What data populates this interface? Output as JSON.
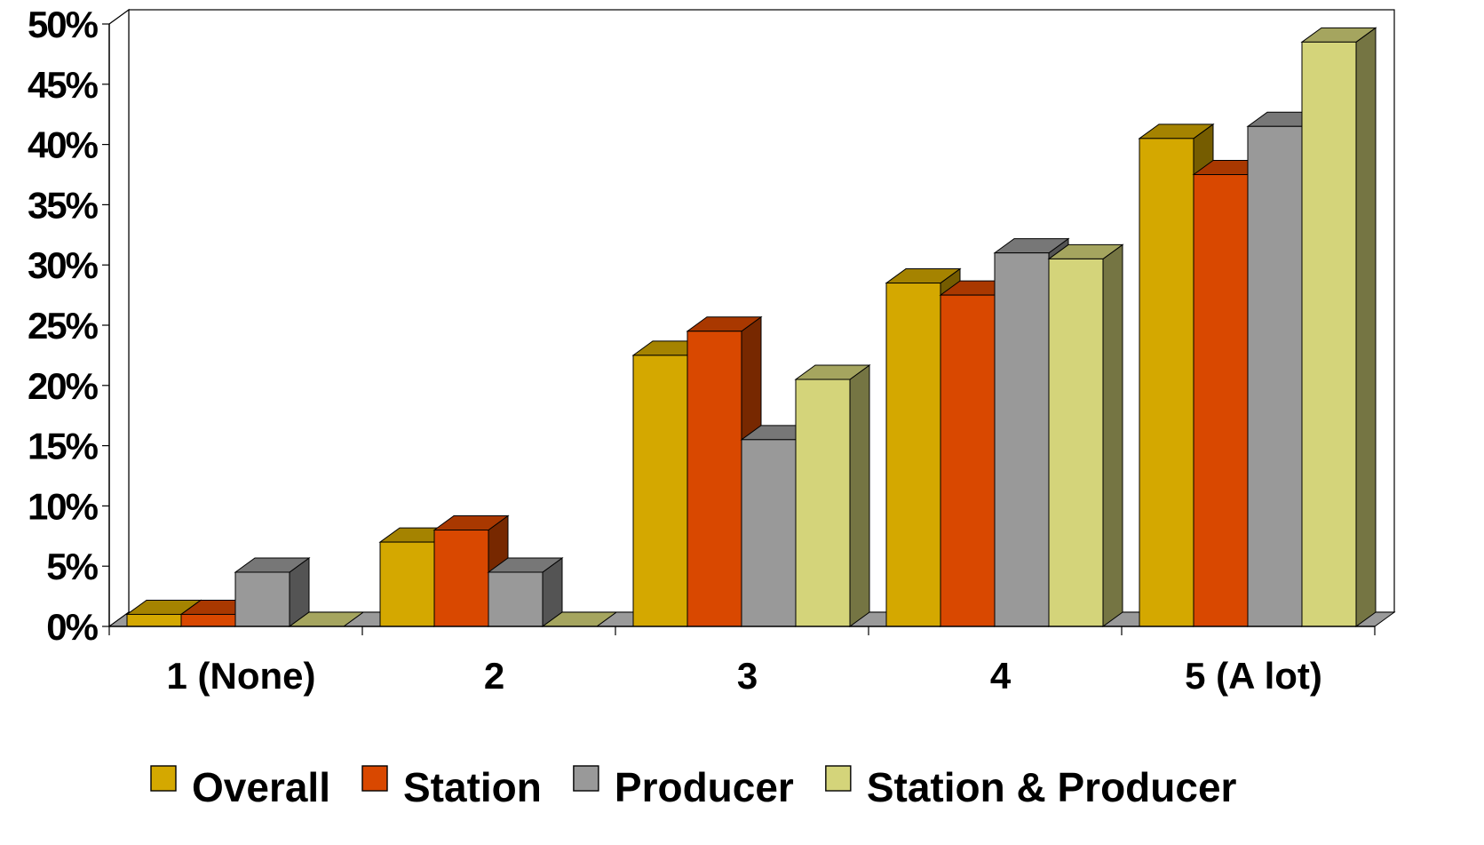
{
  "chart_data": {
    "type": "bar",
    "style": "3d-clustered-column",
    "categories": [
      "1 (None)",
      "2",
      "3",
      "4",
      "5 (A lot)"
    ],
    "series": [
      {
        "name": "Overall",
        "values": [
          1,
          7,
          22.5,
          28.5,
          40.5
        ],
        "color": "#d4a800"
      },
      {
        "name": "Station",
        "values": [
          1,
          8,
          24.5,
          27.5,
          37.5
        ],
        "color": "#d94800"
      },
      {
        "name": "Producer",
        "values": [
          4.5,
          4.5,
          15.5,
          31,
          41.5
        ],
        "color": "#999999"
      },
      {
        "name": "Station & Producer",
        "values": [
          0,
          0,
          20.5,
          30.5,
          48.5
        ],
        "color": "#d4d47a"
      }
    ],
    "ylim": [
      0,
      50
    ],
    "yticks": [
      "0%",
      "5%",
      "10%",
      "15%",
      "20%",
      "25%",
      "30%",
      "35%",
      "40%",
      "45%",
      "50%"
    ],
    "grid": true,
    "legend_position": "bottom"
  }
}
